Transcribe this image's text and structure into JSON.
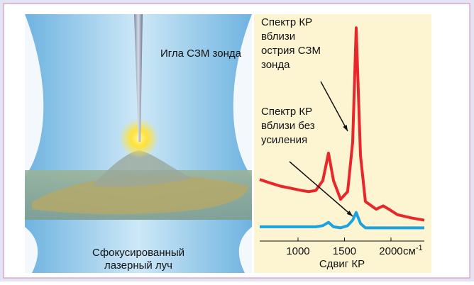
{
  "chart_data": {
    "type": "line",
    "illustration_labels": {
      "tip": "Игла СЗМ зонда",
      "beam": [
        "Сфокусированный",
        "лазерный луч"
      ]
    },
    "annotations": [
      {
        "lines": [
          "Спектр КР",
          "вблизи",
          "острия СЗМ",
          "зонда"
        ]
      },
      {
        "lines": [
          "Спектр КР",
          "вблизи без",
          "усиления"
        ]
      }
    ],
    "x_label": "Сдвиг КР",
    "x_unit": {
      "base": "см",
      "exponent": "-1"
    },
    "x": [
      588,
      695,
      809,
      924,
      1038,
      1115,
      1191,
      1267,
      1328,
      1382,
      1458,
      1534,
      1588,
      1626,
      1672,
      1725,
      1840,
      1916,
      1977,
      2069,
      2221,
      2359
    ],
    "series": [
      {
        "color": "#e8262b",
        "values": [
          28,
          26.5,
          25,
          24,
          23,
          22.5,
          23,
          27.5,
          40,
          27.5,
          19,
          22.5,
          45,
          97,
          39,
          18,
          14.5,
          16,
          14.5,
          12,
          10.5,
          9.5
        ]
      },
      {
        "color": "#1aa3e0",
        "values": [
          6.5,
          6.5,
          6.5,
          6.5,
          6.5,
          6.5,
          6.5,
          7,
          8.5,
          6.5,
          6,
          7,
          9.5,
          13,
          8,
          6,
          6,
          6,
          6,
          6,
          6,
          6
        ]
      }
    ],
    "xlim": [
      588,
      2359
    ],
    "ylim": [
      0,
      100
    ],
    "xticks": [
      1000,
      1500,
      2000
    ]
  }
}
